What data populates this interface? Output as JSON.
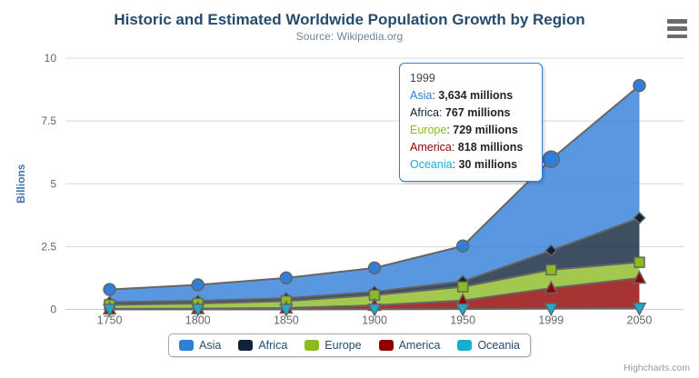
{
  "chart": {
    "title": "Historic and Estimated Worldwide Population Growth by Region",
    "subtitle": "Source: Wikipedia.org",
    "credits": "Highcharts.com",
    "export_icon": "hamburger-menu-icon"
  },
  "tooltip": {
    "header": "1999",
    "border_color": "#2f7ed8",
    "rows": [
      {
        "name": "Asia",
        "color": "#2f7ed8",
        "value": "3,634 millions"
      },
      {
        "name": "Africa",
        "color": "#0d233a",
        "value": "767 millions"
      },
      {
        "name": "Europe",
        "color": "#8bbc21",
        "value": "729 millions"
      },
      {
        "name": "America",
        "color": "#910000",
        "value": "818 millions"
      },
      {
        "name": "Oceania",
        "color": "#1aadce",
        "value": "30 millions"
      }
    ]
  },
  "legend": {
    "items": [
      {
        "label": "Asia",
        "color": "#2f7ed8"
      },
      {
        "label": "Africa",
        "color": "#0d233a"
      },
      {
        "label": "Europe",
        "color": "#8bbc21"
      },
      {
        "label": "America",
        "color": "#910000"
      },
      {
        "label": "Oceania",
        "color": "#1aadce"
      }
    ]
  },
  "chart_data": {
    "type": "area",
    "stacking": "normal",
    "title": "Historic and Estimated Worldwide Population Growth by Region",
    "subtitle": "Source: Wikipedia.org",
    "xlabel": "",
    "ylabel": "Billions",
    "categories": [
      "1750",
      "1800",
      "1850",
      "1900",
      "1950",
      "1999",
      "2050"
    ],
    "series": [
      {
        "name": "Asia",
        "color": "#2f7ed8",
        "marker": "circle",
        "values_millions": [
          502,
          635,
          809,
          947,
          1402,
          3634,
          5268
        ]
      },
      {
        "name": "Africa",
        "color": "#0d233a",
        "marker": "diamond",
        "values_millions": [
          106,
          107,
          111,
          133,
          221,
          767,
          1766
        ]
      },
      {
        "name": "Europe",
        "color": "#8bbc21",
        "marker": "square",
        "values_millions": [
          163,
          203,
          276,
          408,
          547,
          729,
          628
        ]
      },
      {
        "name": "America",
        "color": "#910000",
        "marker": "triangle",
        "values_millions": [
          18,
          31,
          54,
          156,
          339,
          818,
          1201
        ]
      },
      {
        "name": "Oceania",
        "color": "#1aadce",
        "marker": "triangle-down",
        "values_millions": [
          2,
          2,
          2,
          6,
          13,
          30,
          46
        ]
      }
    ],
    "yticks_billions": [
      0,
      2.5,
      5,
      7.5,
      10
    ],
    "ylim_billions": [
      0,
      10
    ],
    "grid": "horizontal",
    "legend_position": "bottom-center",
    "line_color": "#666666",
    "grid_color": "#d8d8d8",
    "axis_line_color": "#c0d0e0",
    "axis_label_color": "#666666",
    "yaxis_title_color": "#4572a7",
    "hover": {
      "series": "Asia",
      "category": "1999"
    }
  }
}
